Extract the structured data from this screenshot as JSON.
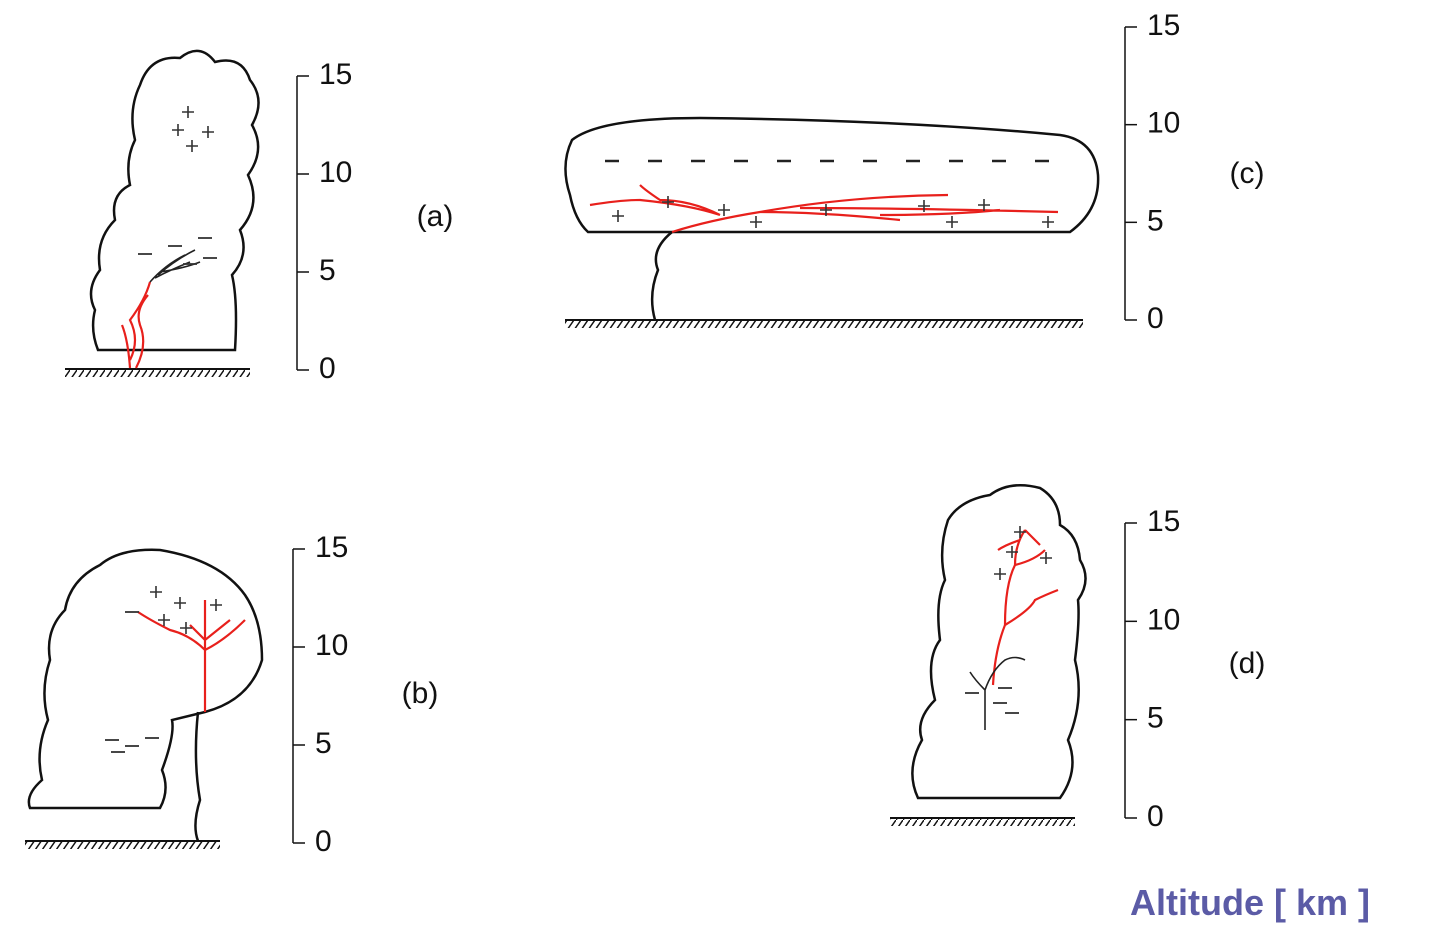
{
  "panels": [
    {
      "label": "(a)",
      "ticks": [
        0,
        5,
        10,
        15
      ]
    },
    {
      "label": "(b)",
      "ticks": [
        0,
        5,
        10,
        15
      ]
    },
    {
      "label": "(c)",
      "ticks": [
        0,
        5,
        10,
        15
      ]
    },
    {
      "label": "(d)",
      "ticks": [
        0,
        5,
        10,
        15
      ]
    }
  ],
  "caption": "Altitude [ km ]"
}
